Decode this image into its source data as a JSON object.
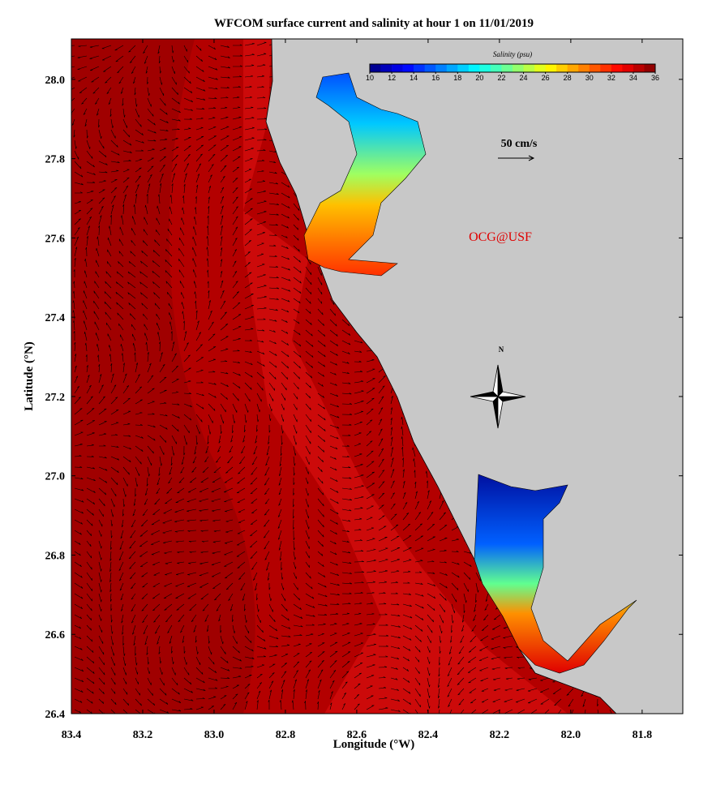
{
  "map_data": {
    "title": "WFCOM surface current and salinity at hour 1 on 11/01/2019",
    "x_axis": {
      "label": "Longitude (°W)",
      "lim": [
        83.4,
        81.686
      ],
      "ticks": [
        83.4,
        83.2,
        {
          "value": 83,
          "label": "83.0"
        },
        82.8,
        82.6,
        82.4,
        82.2,
        {
          "value": 82,
          "label": "82.0"
        },
        81.8
      ]
    },
    "y_axis": {
      "label": "Latitude (°N)",
      "lim": [
        26.4,
        28.102
      ],
      "ticks": [
        26.4,
        26.6,
        26.8,
        {
          "value": 27,
          "label": "27.0"
        },
        27.2,
        27.4,
        27.6,
        27.8,
        {
          "value": 28,
          "label": "28.0"
        }
      ]
    },
    "colorbar": {
      "title": "Salinity (psu)",
      "lim": [
        10,
        36
      ],
      "ticks": [
        10,
        12,
        14,
        16,
        18,
        20,
        22,
        24,
        26,
        28,
        30,
        32,
        34,
        36
      ]
    },
    "scale_label": "50 cm/s",
    "credit": "OCG@USF",
    "compass_label": "N"
  }
}
